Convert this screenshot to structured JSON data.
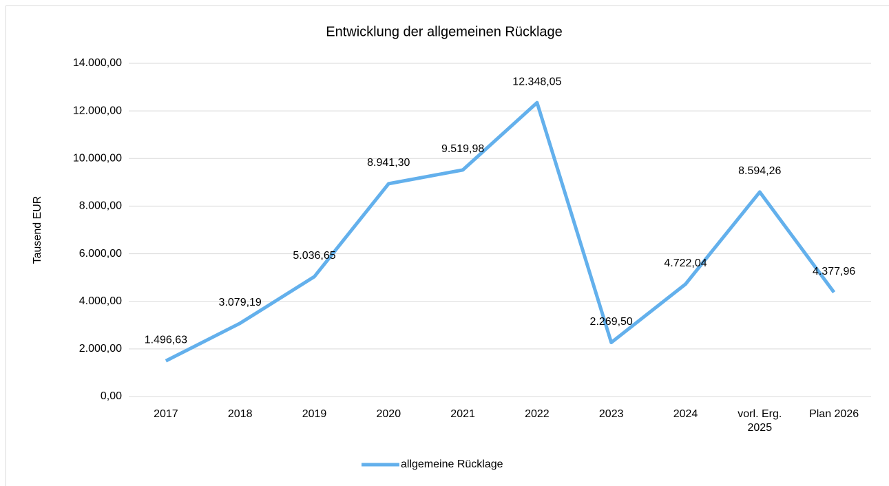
{
  "chart_data": {
    "type": "line",
    "title": "Entwicklung der allgemeinen Rücklage",
    "y_label": "Tausend EUR",
    "categories": [
      "2017",
      "2018",
      "2019",
      "2020",
      "2021",
      "2022",
      "2023",
      "2024",
      "vorl. Erg. 2025",
      "Plan 2026"
    ],
    "series": [
      {
        "name": "allgemeine Rücklage",
        "color": "#63b0ec",
        "values": [
          1496.63,
          3079.19,
          5036.65,
          8941.3,
          9519.98,
          12348.05,
          2269.5,
          4722.04,
          8594.26,
          4377.96
        ],
        "value_labels": [
          "1.496,63",
          "3.079,19",
          "5.036,65",
          "8.941,30",
          "9.519,98",
          "12.348,05",
          "2.269,50",
          "4.722,04",
          "8.594,26",
          "4.377,96"
        ]
      }
    ],
    "ylim": [
      0,
      14000
    ],
    "yticks": [
      {
        "value": 0,
        "label": "0,00"
      },
      {
        "value": 2000,
        "label": "2.000,00"
      },
      {
        "value": 4000,
        "label": "4.000,00"
      },
      {
        "value": 6000,
        "label": "6.000,00"
      },
      {
        "value": 8000,
        "label": "8.000,00"
      },
      {
        "value": 10000,
        "label": "10.000,00"
      },
      {
        "value": 12000,
        "label": "12.000,00"
      },
      {
        "value": 14000,
        "label": "14.000,00"
      }
    ],
    "grid": true,
    "legend": "bottom"
  }
}
